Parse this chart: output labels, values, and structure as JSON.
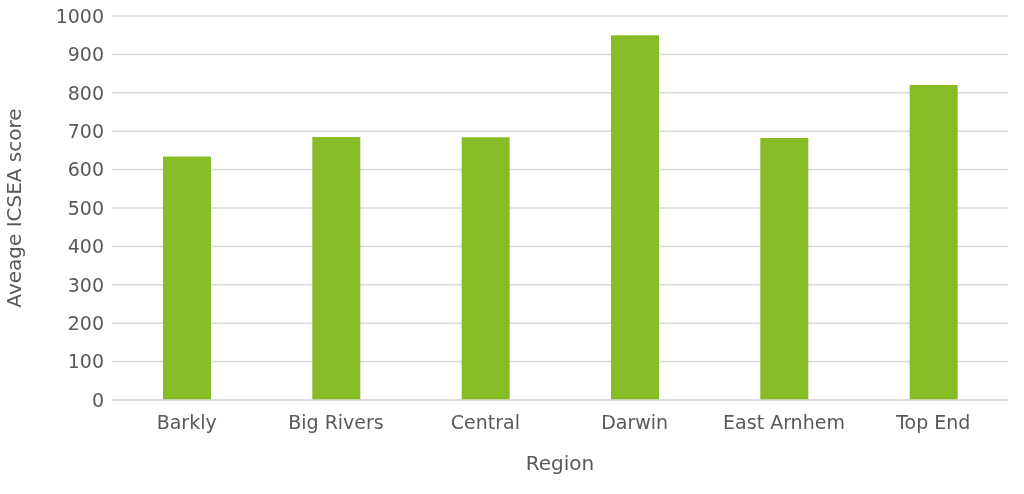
{
  "chart_data": {
    "type": "bar",
    "xlabel": "Region",
    "ylabel": "Aveage ICSEA score",
    "categories": [
      "Barkly",
      "Big Rivers",
      "Central",
      "Darwin",
      "East Arnhem",
      "Top End"
    ],
    "values": [
      634,
      685,
      684,
      950,
      682,
      820
    ],
    "color": "#86bc25",
    "ylim": [
      0,
      1000
    ],
    "yticks": [
      0,
      100,
      200,
      300,
      400,
      500,
      600,
      700,
      800,
      900,
      1000
    ],
    "grid": "y"
  }
}
